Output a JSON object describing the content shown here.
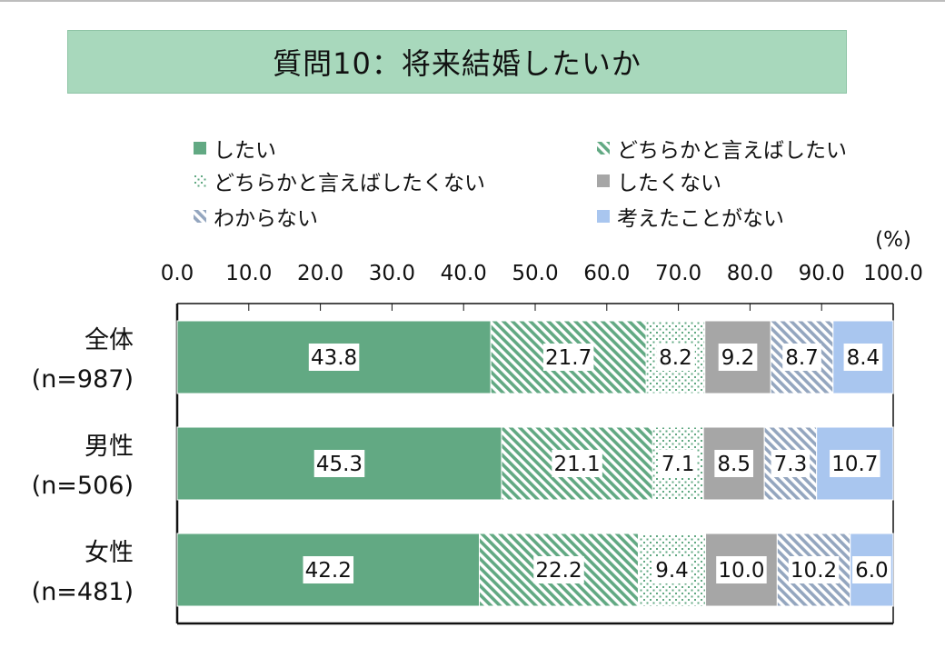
{
  "title": "質問10：将来結婚したいか",
  "chart_data": {
    "type": "bar",
    "orientation": "horizontal",
    "stacked": true,
    "unit_label": "(%)",
    "xlim": [
      0,
      100
    ],
    "ticks": [
      "0.0",
      "10.0",
      "20.0",
      "30.0",
      "40.0",
      "50.0",
      "60.0",
      "70.0",
      "80.0",
      "90.0",
      "100.0"
    ],
    "categories": [
      {
        "name": "全体",
        "n": "(n=987)"
      },
      {
        "name": "男性",
        "n": "(n=506)"
      },
      {
        "name": "女性",
        "n": "(n=481)"
      }
    ],
    "series": [
      {
        "name": "したい",
        "color": "#62a983",
        "pattern": "solid",
        "values": [
          43.8,
          45.3,
          42.2
        ],
        "labels": [
          "43.8",
          "45.3",
          "42.2"
        ]
      },
      {
        "name": "どちらかと言えばしたい",
        "color": "#62a983",
        "pattern": "diagonal",
        "values": [
          21.7,
          21.1,
          22.2
        ],
        "labels": [
          "21.7",
          "21.1",
          "22.2"
        ]
      },
      {
        "name": "どちらかと言えばしたくない",
        "color": "#62a983",
        "pattern": "dots",
        "values": [
          8.2,
          7.1,
          9.4
        ],
        "labels": [
          "8.2",
          "7.1",
          "9.4"
        ]
      },
      {
        "name": "したくない",
        "color": "#a6a6a6",
        "pattern": "solid",
        "values": [
          9.2,
          8.5,
          10.0
        ],
        "labels": [
          "9.2",
          "8.5",
          "10.0"
        ]
      },
      {
        "name": "わからない",
        "color": "#94a6bf",
        "pattern": "diagonal",
        "values": [
          8.7,
          7.3,
          10.2
        ],
        "labels": [
          "8.7",
          "7.3",
          "10.2"
        ]
      },
      {
        "name": "考えたことがない",
        "color": "#a9c6ef",
        "pattern": "solid",
        "values": [
          8.4,
          10.7,
          6.0
        ],
        "labels": [
          "8.4",
          "10.7",
          "6.0"
        ]
      }
    ],
    "legend_position": "top",
    "grid": false
  }
}
